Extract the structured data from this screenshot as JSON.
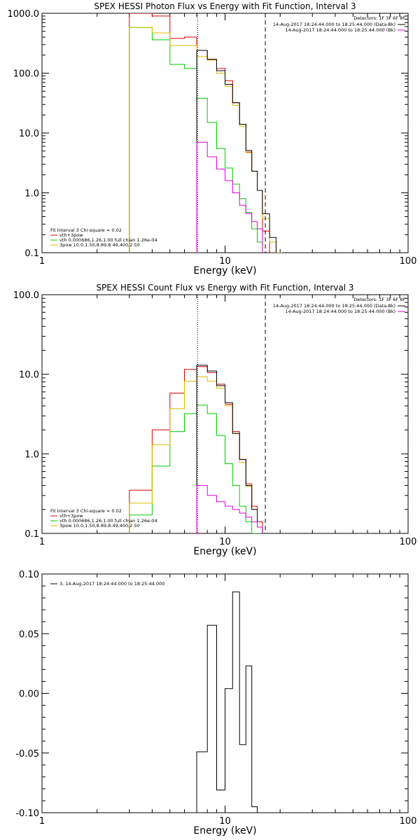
{
  "chart_data": [
    {
      "type": "line",
      "title": "SPEX HESSI Photon Flux vs Energy with Fit Function, Interval 3",
      "xlabel": "Energy (keV)",
      "ylabel": "",
      "xscale": "log",
      "yscale": "log",
      "xlim": [
        1,
        100
      ],
      "ylim": [
        0.1,
        1000
      ],
      "x_tick_labels": [
        "1",
        "10",
        "100"
      ],
      "y_tick_labels": [
        "0.1",
        "1.0",
        "10.0",
        "100.0",
        "1000.0"
      ],
      "x_tick_values": [
        1,
        10,
        100
      ],
      "y_tick_values": [
        0.1,
        1,
        10,
        100,
        1000
      ],
      "legend_right": {
        "placement": "top-right",
        "header": "Detectors: 1F 3F 6F 8F",
        "entries": [
          {
            "label": "14-Aug-2017 18:24:44.000 to 18:25:44.000 (Data-Bk)",
            "color": "#000000"
          },
          {
            "label": "14-Aug-2017 18:24:44.000 to 18:25:44.000 (Bk)",
            "color": "#dd00dd"
          }
        ]
      },
      "legend_left": {
        "placement": "bottom-left",
        "header": "Fit Interval 3   Chi-square = 0.02",
        "entries": [
          {
            "label": "vth+3pow",
            "color": "#dd0000"
          },
          {
            "label": "vth 0.000686,1.26,1.00   full chian 1.26e-04",
            "color": "#00cc00"
          },
          {
            "label": "3pow 10.0,1.50,8.89,8.49,400,2.50",
            "color": "#ddbb00"
          }
        ]
      },
      "vlines": [
        {
          "x": 7.08,
          "style": "dotted"
        },
        {
          "x": 16.6,
          "style": "dashed"
        }
      ],
      "series": [
        {
          "color": "#dd0000",
          "edges": [
            3,
            4,
            5,
            6,
            7,
            8,
            9,
            10,
            11,
            12,
            13,
            14,
            15,
            16,
            17.5,
            19,
            20.5
          ],
          "values": [
            2000,
            900,
            380,
            400,
            240,
            170,
            120,
            75,
            32,
            14,
            4.8,
            2.3,
            1.1,
            0.23,
            0.1,
            0.1
          ]
        },
        {
          "color": "#00cc00",
          "edges": [
            3,
            4,
            5,
            6,
            7,
            8,
            9,
            10,
            11,
            12,
            13,
            14,
            15,
            16
          ],
          "values": [
            580,
            360,
            140,
            120,
            38,
            15,
            5.5,
            2.6,
            1.4,
            0.8,
            0.47,
            0.25,
            0.15
          ]
        },
        {
          "color": "#ddbb00",
          "edges": [
            3,
            4,
            5,
            6,
            7,
            8,
            9,
            10,
            11,
            12,
            13,
            14,
            15,
            16,
            17.5,
            19,
            20.5
          ],
          "values": [
            580,
            470,
            290,
            290,
            190,
            165,
            100,
            60,
            29,
            13,
            4.7,
            2.3,
            1.1,
            0.37,
            0.15,
            0.1
          ]
        },
        {
          "color": "#000000",
          "edges": [
            7,
            8,
            9,
            10,
            11,
            12,
            13,
            14,
            15,
            16,
            17.5,
            19
          ],
          "values": [
            240,
            170,
            110,
            65,
            32,
            14,
            5.1,
            2.3,
            1.1,
            0.45,
            0.18
          ]
        },
        {
          "color": "#dd00dd",
          "edges": [
            7,
            8,
            9,
            10,
            11,
            12,
            13,
            14,
            15,
            16
          ],
          "values": [
            7,
            4,
            2.5,
            1.6,
            1.0,
            0.62,
            0.45,
            0.33,
            0.25
          ]
        }
      ]
    },
    {
      "type": "line",
      "title": "SPEX HESSI Count Flux vs Energy with Fit Function, Interval 3",
      "xlabel": "Energy (keV)",
      "ylabel": "",
      "xscale": "log",
      "yscale": "log",
      "xlim": [
        1,
        100
      ],
      "ylim": [
        0.1,
        100
      ],
      "x_tick_labels": [
        "1",
        "10",
        "100"
      ],
      "y_tick_labels": [
        "0.1",
        "1.0",
        "10.0",
        "100.0"
      ],
      "x_tick_values": [
        1,
        10,
        100
      ],
      "y_tick_values": [
        0.1,
        1,
        10,
        100
      ],
      "legend_right": {
        "placement": "top-right",
        "header": "Detectors: 1F 3F 6F 8F",
        "entries": [
          {
            "label": "14-Aug-2017 18:24:44.000 to 18:25:44.000 (Data-Bk)",
            "color": "#000000"
          },
          {
            "label": "14-Aug-2017 18:24:44.000 to 18:25:44.000 (Bk)",
            "color": "#dd00dd"
          }
        ]
      },
      "legend_left": {
        "placement": "bottom-left",
        "header": "Fit Interval 3   Chi-square = 0.02",
        "entries": [
          {
            "label": "vth+3pow",
            "color": "#dd0000"
          },
          {
            "label": "vth 0.000686,1.26,1.00   full chian 1.26e-04",
            "color": "#00cc00"
          },
          {
            "label": "3pow 10.0,1.50,8.89,8.49,400,2.50",
            "color": "#ddbb00"
          }
        ]
      },
      "vlines": [
        {
          "x": 7.08,
          "style": "dotted"
        },
        {
          "x": 16.6,
          "style": "dashed"
        }
      ],
      "series": [
        {
          "color": "#dd0000",
          "edges": [
            3,
            4,
            5,
            6,
            7,
            8,
            9,
            10,
            11,
            12,
            13,
            14,
            15,
            16
          ],
          "values": [
            0.35,
            2.0,
            5.8,
            11.5,
            12.5,
            10.5,
            7.5,
            4.2,
            1.9,
            0.85,
            0.42,
            0.22,
            0.14
          ]
        },
        {
          "color": "#00cc00",
          "edges": [
            3,
            4,
            5,
            6,
            7,
            8,
            9,
            10,
            11,
            12,
            13,
            14,
            15,
            16
          ],
          "values": [
            0.17,
            0.7,
            1.9,
            3.2,
            4.1,
            3.2,
            1.7,
            0.75,
            0.4,
            0.22,
            0.14,
            0.1,
            0.1
          ]
        },
        {
          "color": "#ddbb00",
          "edges": [
            3,
            4,
            5,
            6,
            7,
            8,
            9,
            10,
            11,
            12,
            13,
            14,
            15,
            16
          ],
          "values": [
            0.24,
            1.3,
            3.7,
            8.2,
            9.3,
            8.2,
            6.7,
            4.0,
            1.8,
            0.78,
            0.39,
            0.2,
            0.12
          ]
        },
        {
          "color": "#000000",
          "edges": [
            7,
            8,
            9,
            10,
            11,
            12,
            13,
            14,
            15,
            16
          ],
          "values": [
            13,
            11,
            7.2,
            4.4,
            1.8,
            0.85,
            0.4,
            0.2,
            0.12
          ]
        },
        {
          "color": "#dd00dd",
          "edges": [
            7,
            8,
            9,
            10,
            11,
            12,
            13,
            14,
            15,
            16
          ],
          "values": [
            0.4,
            0.3,
            0.25,
            0.22,
            0.2,
            0.18,
            0.16,
            0.14,
            0.12
          ]
        }
      ]
    },
    {
      "type": "line",
      "title": "",
      "xlabel": "Energy (keV)",
      "ylabel": "",
      "xscale": "log",
      "yscale": "linear",
      "xlim": [
        1,
        100
      ],
      "ylim": [
        -0.1,
        0.1
      ],
      "x_tick_labels": [
        "1",
        "10",
        "100"
      ],
      "y_tick_labels": [
        "0.10",
        "0.05",
        "0.00",
        "-0.05",
        "-0.10"
      ],
      "x_tick_values": [
        1,
        10,
        100
      ],
      "y_tick_values": [
        0.1,
        0.05,
        0,
        -0.05,
        -0.1
      ],
      "legend_left": {
        "placement": "top-left",
        "header": "",
        "entries": [
          {
            "label": "3, 14-Aug-2017 18:24:44.000 to 18:25:44.000",
            "color": "#000000"
          }
        ]
      },
      "series": [
        {
          "color": "#000000",
          "edges": [
            7,
            8,
            9,
            10,
            11,
            12,
            13,
            14,
            15,
            16
          ],
          "values": [
            -0.049,
            0.057,
            -0.081,
            0.004,
            0.085,
            -0.043,
            0.023,
            -0.095,
            -0.1
          ]
        }
      ]
    }
  ]
}
